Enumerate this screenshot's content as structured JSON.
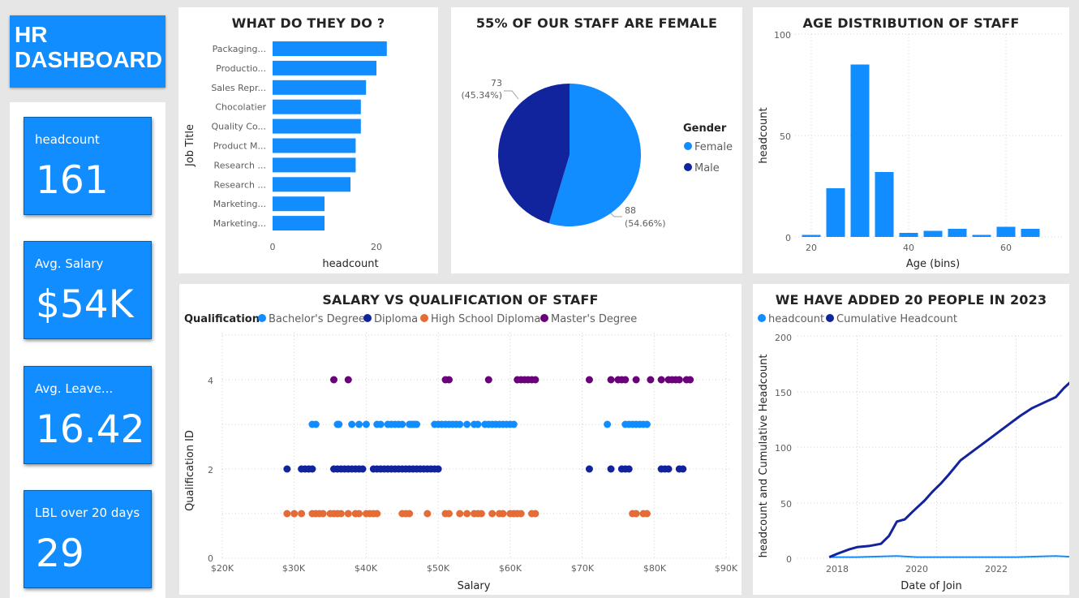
{
  "app": {
    "title": "HR DASHBOARD"
  },
  "colors": {
    "primary": "#118dff",
    "dark": "#12239e",
    "orange": "#e66c37",
    "purple": "#6b007b"
  },
  "kpis": [
    {
      "label": "headcount",
      "value": "161"
    },
    {
      "label": "Avg. Salary",
      "value": "$54K"
    },
    {
      "label": "Avg. Leave...",
      "value": "16.42"
    },
    {
      "label": "LBL over 20 days",
      "value": "29"
    }
  ],
  "charts": {
    "jobs": {
      "title": "WHAT DO THEY DO ?",
      "ylabel": "Job Title",
      "xlabel": "headcount",
      "xticks": [
        "0",
        "20"
      ]
    },
    "gender": {
      "title": "55% OF OUR STAFF ARE FEMALE",
      "legend_title": "Gender",
      "female_label_count": "88",
      "female_label_pct": "(54.66%)",
      "male_label_count": "73",
      "male_label_pct": "(45.34%)"
    },
    "age": {
      "title": "AGE DISTRIBUTION OF STAFF",
      "ylabel": "headcount",
      "xlabel": "Age (bins)",
      "yticks": [
        "100",
        "50",
        "0"
      ],
      "xticks": [
        "20",
        "40",
        "60"
      ]
    },
    "salary": {
      "title": "SALARY VS QUALIFICATION OF STAFF",
      "legend_title": "Qualification",
      "ylabel": "Qualification ID",
      "xlabel": "Salary",
      "yticks": [
        "4",
        "2",
        "0"
      ],
      "xticks": [
        "$20K",
        "$30K",
        "$40K",
        "$50K",
        "$60K",
        "$70K",
        "$80K",
        "$90K"
      ]
    },
    "hires": {
      "title": "WE HAVE ADDED 20 PEOPLE IN 2023",
      "ylabel": "headcount and Cumulative Headcount",
      "xlabel": "Date of Join",
      "yticks": [
        "200",
        "150",
        "100",
        "50",
        "0"
      ],
      "xticks": [
        "2018",
        "2020",
        "2022"
      ]
    }
  },
  "chart_data": [
    {
      "type": "bar",
      "orientation": "horizontal",
      "categories": [
        "Packaging...",
        "Productio...",
        "Sales Repr...",
        "Chocolatier",
        "Quality Co...",
        "Product M...",
        "Research ...",
        "Research ...",
        "Marketing...",
        "Marketing..."
      ],
      "values": [
        22,
        20,
        18,
        17,
        17,
        16,
        16,
        15,
        10,
        10
      ],
      "xlabel": "headcount",
      "ylabel": "Job Title",
      "xlim": [
        0,
        25
      ]
    },
    {
      "type": "pie",
      "categories": [
        "Female",
        "Male"
      ],
      "values": [
        88,
        73
      ],
      "percent": [
        54.66,
        45.34
      ],
      "legend": "right"
    },
    {
      "type": "bar",
      "categories": [
        "20",
        "25",
        "30",
        "35",
        "40",
        "45",
        "50",
        "55",
        "60",
        "65"
      ],
      "values": [
        1,
        24,
        85,
        32,
        2,
        3,
        4,
        1,
        5,
        4
      ],
      "xlabel": "Age (bins)",
      "ylabel": "headcount",
      "ylim": [
        0,
        100
      ]
    },
    {
      "type": "scatter",
      "xlabel": "Salary",
      "ylabel": "Qualification ID",
      "xlim": [
        20000,
        90000
      ],
      "ylim": [
        0,
        4.8
      ],
      "series": [
        {
          "name": "Bachelor's Degree",
          "color": "#118dff",
          "y": 3,
          "x": [
            32500,
            33000,
            36000,
            36200,
            38000,
            39000,
            40000,
            41500,
            42000,
            43000,
            43500,
            44000,
            44500,
            45000,
            46000,
            46300,
            46700,
            47000,
            49500,
            50000,
            50500,
            51000,
            51500,
            52000,
            52500,
            53000,
            54000,
            55000,
            55500,
            56500,
            57000,
            57500,
            58000,
            58500,
            59000,
            59500,
            60000,
            60500,
            73500,
            76000,
            76500,
            77000,
            77500,
            78000,
            78500,
            79000
          ]
        },
        {
          "name": "Diploma",
          "color": "#12239e",
          "y": 2,
          "x": [
            29000,
            31000,
            31500,
            32000,
            32500,
            35500,
            36000,
            36500,
            37000,
            37500,
            38000,
            38500,
            39000,
            39500,
            41000,
            41500,
            42000,
            42500,
            43000,
            43500,
            44000,
            44500,
            45000,
            45500,
            46000,
            46500,
            47000,
            47500,
            48000,
            48500,
            49000,
            49500,
            50000,
            71000,
            74000,
            75500,
            76000,
            76500,
            81000,
            81500,
            82000,
            83500,
            84000
          ]
        },
        {
          "name": "High School Diploma",
          "color": "#e66c37",
          "y": 1,
          "x": [
            29000,
            30000,
            31000,
            32500,
            33000,
            33500,
            34000,
            35000,
            35500,
            36000,
            36500,
            37500,
            38500,
            39000,
            40000,
            40500,
            41000,
            41500,
            45000,
            45500,
            46000,
            48500,
            51000,
            51500,
            53000,
            54000,
            55000,
            55500,
            56000,
            57500,
            58500,
            59000,
            60000,
            60500,
            61000,
            61500,
            63000,
            63500,
            77000,
            77500,
            78500,
            79000
          ]
        },
        {
          "name": "Master's Degree",
          "color": "#6b007b",
          "y": 4,
          "x": [
            35500,
            37500,
            51000,
            51500,
            57000,
            61000,
            61500,
            62000,
            62500,
            63000,
            63500,
            71000,
            74000,
            75000,
            75500,
            76000,
            77500,
            79500,
            81000,
            82000,
            82500,
            83000,
            83500,
            84500,
            85000
          ]
        }
      ]
    },
    {
      "type": "line",
      "xlabel": "Date of Join",
      "ylabel": "headcount and Cumulative Headcount",
      "xlim": [
        2016.5,
        2024.0
      ],
      "ylim": [
        0,
        200
      ],
      "series": [
        {
          "name": "headcount",
          "color": "#118dff",
          "x": [
            2017.3,
            2018.0,
            2019.0,
            2019.5,
            2020.0,
            2021.0,
            2022.0,
            2023.0,
            2023.5
          ],
          "y": [
            1,
            1,
            2,
            1,
            1,
            1,
            1,
            2,
            1
          ]
        },
        {
          "name": "Cumulative Headcount",
          "color": "#12239e",
          "x": [
            2017.3,
            2017.5,
            2017.8,
            2018.0,
            2018.3,
            2018.6,
            2018.8,
            2019.0,
            2019.2,
            2019.4,
            2019.7,
            2019.9,
            2020.1,
            2020.3,
            2020.6,
            2020.9,
            2021.2,
            2021.5,
            2021.8,
            2022.1,
            2022.4,
            2022.7,
            2023.0,
            2023.2,
            2023.35,
            2023.5
          ],
          "y": [
            1,
            4,
            8,
            10,
            11,
            13,
            20,
            33,
            35,
            42,
            52,
            60,
            67,
            75,
            88,
            96,
            104,
            112,
            120,
            128,
            135,
            140,
            145,
            153,
            158,
            161
          ]
        }
      ]
    }
  ],
  "legend_items": {
    "gender": [
      {
        "label": "Female",
        "color": "#118dff"
      },
      {
        "label": "Male",
        "color": "#12239e"
      }
    ],
    "qualification": [
      {
        "label": "Bachelor's Degree",
        "color": "#118dff"
      },
      {
        "label": "Diploma",
        "color": "#12239e"
      },
      {
        "label": "High School Diploma",
        "color": "#e66c37"
      },
      {
        "label": "Master's Degree",
        "color": "#6b007b"
      }
    ],
    "hires": [
      {
        "label": "headcount",
        "color": "#118dff"
      },
      {
        "label": "Cumulative Headcount",
        "color": "#12239e"
      }
    ]
  }
}
